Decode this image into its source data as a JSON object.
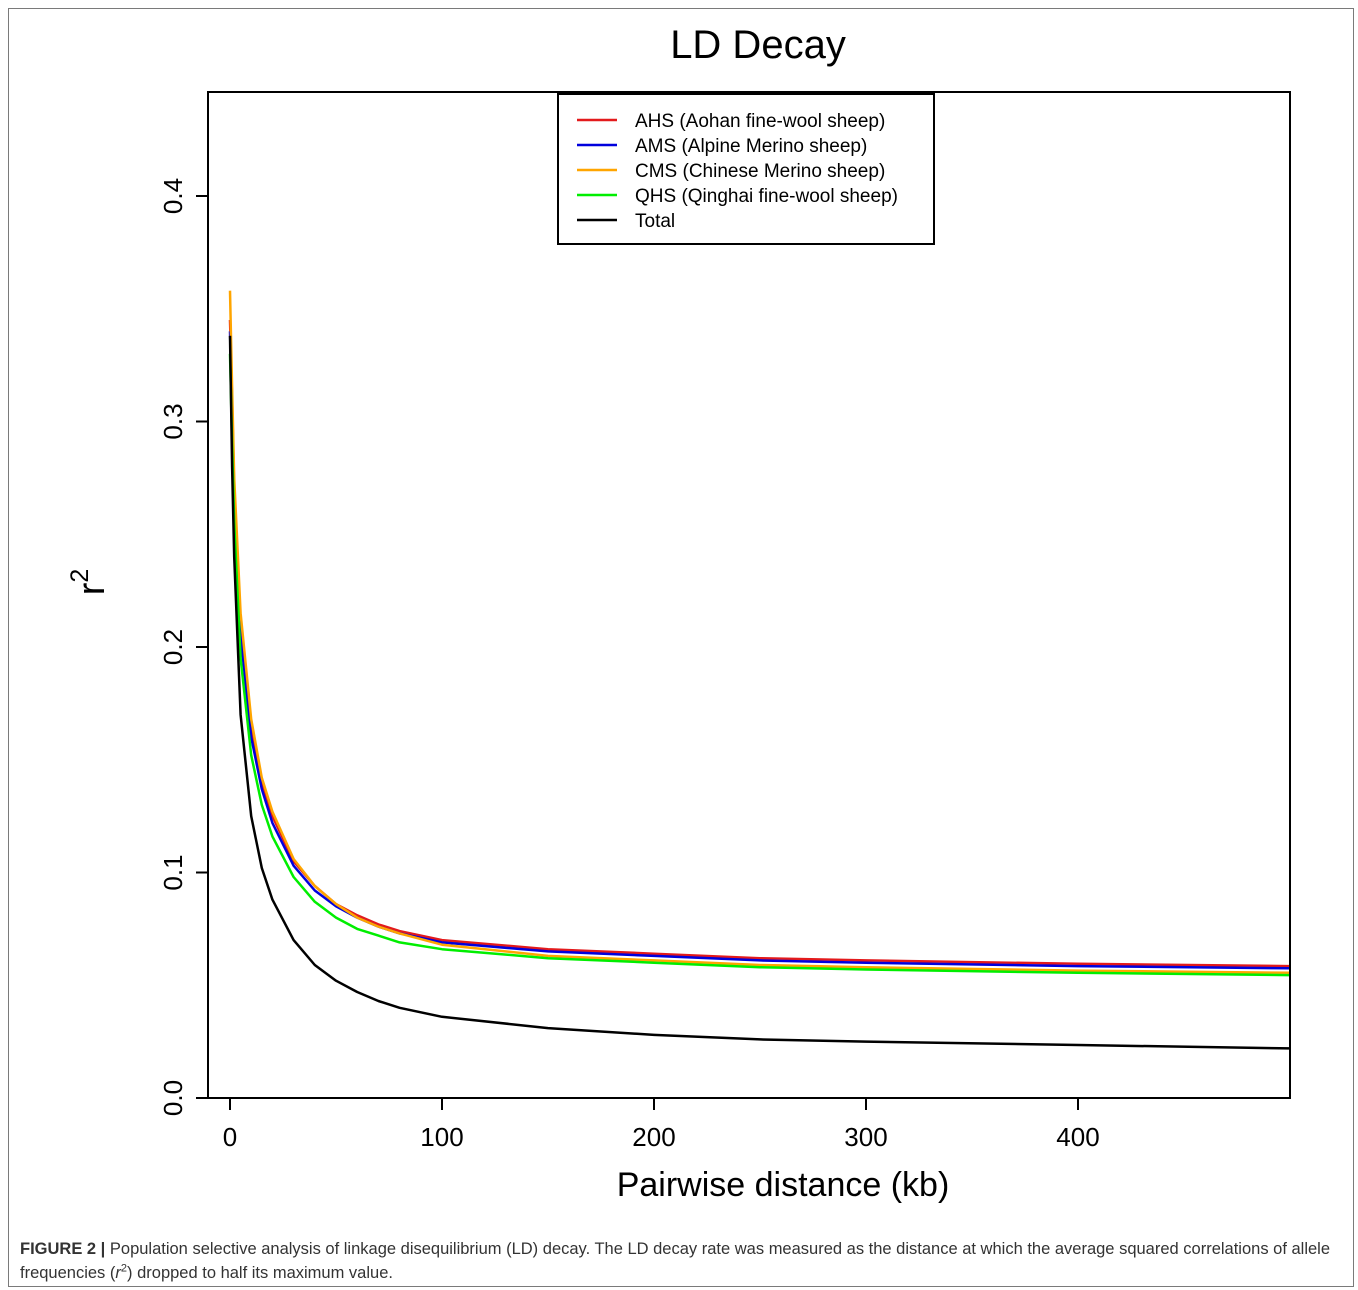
{
  "chart_data": {
    "type": "line",
    "title": "LD Decay",
    "xlabel": "Pairwise distance (kb)",
    "ylabel": "r",
    "ylabel_superscript": "2",
    "xlim": [
      0,
      500
    ],
    "ylim": [
      0.0,
      0.45
    ],
    "x_ticks": [
      0,
      100,
      200,
      300,
      400
    ],
    "x_tick_labels": [
      "0",
      "100",
      "200",
      "300",
      "400"
    ],
    "y_ticks": [
      0.0,
      0.1,
      0.2,
      0.3,
      0.4
    ],
    "y_tick_labels": [
      "0.0",
      "0.1",
      "0.2",
      "0.3",
      "0.4"
    ],
    "grid": false,
    "legend_position": "top-center",
    "series": [
      {
        "name": "AHS (Aohan fine-wool sheep)",
        "color": "#e31a1c",
        "x": [
          0,
          1,
          2,
          5,
          10,
          15,
          20,
          30,
          40,
          50,
          60,
          70,
          80,
          100,
          150,
          200,
          250,
          300,
          400,
          500
        ],
        "y": [
          0.345,
          0.31,
          0.27,
          0.21,
          0.165,
          0.14,
          0.125,
          0.105,
          0.094,
          0.086,
          0.081,
          0.077,
          0.074,
          0.07,
          0.066,
          0.064,
          0.062,
          0.061,
          0.0595,
          0.0585
        ]
      },
      {
        "name": "AMS (Alpine Merino sheep)",
        "color": "#0000dd",
        "x": [
          0,
          1,
          2,
          5,
          10,
          15,
          20,
          30,
          40,
          50,
          60,
          70,
          80,
          100,
          150,
          200,
          250,
          300,
          400,
          500
        ],
        "y": [
          0.34,
          0.305,
          0.265,
          0.205,
          0.16,
          0.137,
          0.122,
          0.103,
          0.092,
          0.085,
          0.08,
          0.076,
          0.073,
          0.069,
          0.065,
          0.063,
          0.061,
          0.06,
          0.0585,
          0.0575
        ]
      },
      {
        "name": "CMS (Chinese Merino sheep)",
        "color": "#ffa500",
        "x": [
          0,
          1,
          2,
          5,
          10,
          15,
          20,
          30,
          40,
          50,
          60,
          70,
          80,
          100,
          150,
          200,
          250,
          300,
          400,
          500
        ],
        "y": [
          0.358,
          0.315,
          0.275,
          0.215,
          0.168,
          0.142,
          0.127,
          0.106,
          0.094,
          0.086,
          0.08,
          0.076,
          0.073,
          0.068,
          0.063,
          0.061,
          0.059,
          0.058,
          0.0565,
          0.0555
        ]
      },
      {
        "name": "QHS (Qinghai fine-wool sheep)",
        "color": "#00ee00",
        "x": [
          0,
          1,
          2,
          5,
          10,
          15,
          20,
          30,
          40,
          50,
          60,
          70,
          80,
          100,
          150,
          200,
          250,
          300,
          400,
          500
        ],
        "y": [
          0.33,
          0.29,
          0.255,
          0.195,
          0.152,
          0.13,
          0.116,
          0.098,
          0.087,
          0.08,
          0.075,
          0.072,
          0.069,
          0.066,
          0.062,
          0.06,
          0.058,
          0.057,
          0.0555,
          0.0545
        ]
      },
      {
        "name": "Total",
        "color": "#000000",
        "x": [
          0,
          1,
          2,
          5,
          10,
          15,
          20,
          30,
          40,
          50,
          60,
          70,
          80,
          100,
          150,
          200,
          250,
          300,
          400,
          500
        ],
        "y": [
          0.338,
          0.28,
          0.24,
          0.17,
          0.125,
          0.102,
          0.088,
          0.07,
          0.059,
          0.052,
          0.047,
          0.043,
          0.04,
          0.036,
          0.031,
          0.028,
          0.026,
          0.025,
          0.0235,
          0.022
        ]
      }
    ]
  },
  "caption": {
    "lead": "FIGURE 2 |",
    "text_1": " Population selective analysis of linkage disequilibrium (LD) decay. The LD decay rate was measured as the distance at which the average squared correlations of allele frequencies (",
    "var": "r",
    "sup": "2",
    "text_2": ") dropped to half its maximum value."
  }
}
